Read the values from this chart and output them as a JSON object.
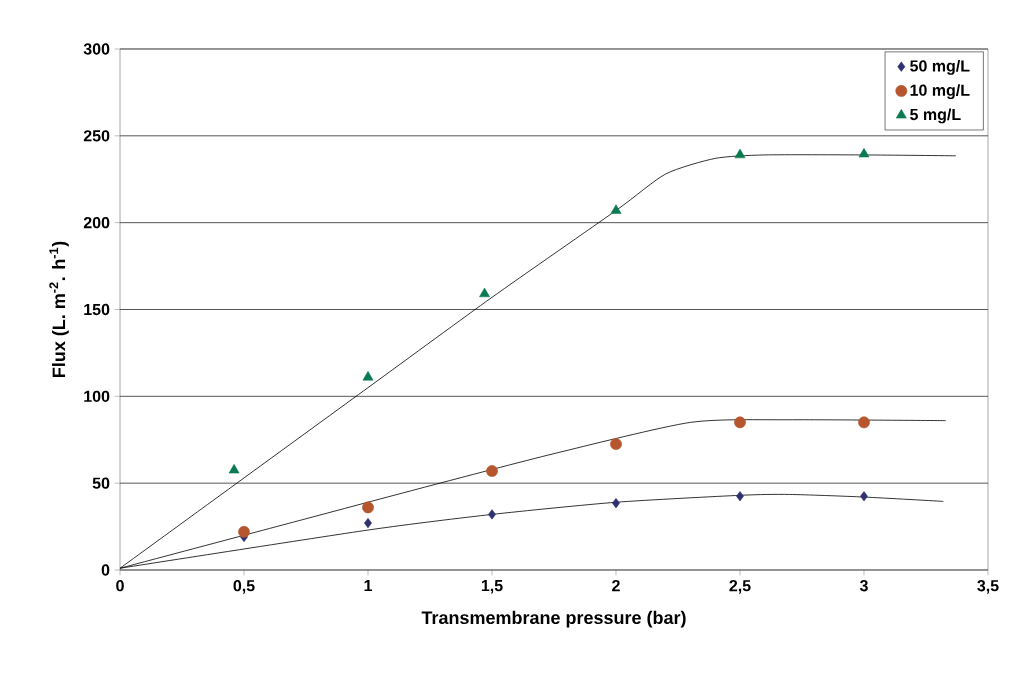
{
  "chart_data": {
    "type": "scatter",
    "xlabel": "Transmembrane pressure (bar)",
    "ylabel": "Flux (L. m$^{-2}$. h$^{-1}$)",
    "xlim": [
      0,
      3.5
    ],
    "ylim": [
      0,
      300
    ],
    "xticks": [
      0,
      {
        "value": 0.5,
        "label": "0,5"
      },
      1,
      {
        "value": 1.5,
        "label": "1,5"
      },
      2,
      {
        "value": 2.5,
        "label": "2,5"
      },
      3,
      {
        "value": 3.5,
        "label": "3,5"
      }
    ],
    "yticks": [
      0,
      50,
      100,
      150,
      200,
      250,
      300
    ],
    "grid": "y",
    "legend": "top right",
    "series": [
      {
        "name": "50 mg/L",
        "color": "#2e3070",
        "marker": "diamond",
        "x": [
          0.5,
          1,
          1.5,
          2,
          2.5,
          3
        ],
        "values": [
          19,
          27,
          32,
          38.5,
          42.5,
          42.5
        ]
      },
      {
        "name": "10 mg/L",
        "color": "#b5562e",
        "marker": "circle",
        "x": [
          0.5,
          1,
          1.5,
          2,
          2.5,
          3
        ],
        "values": [
          22,
          36,
          57,
          72.5,
          85,
          85
        ]
      },
      {
        "name": "5 mg/L",
        "color": "#0a7a50",
        "marker": "triangle",
        "x": [
          0.46,
          1,
          1.47,
          2,
          2.5,
          3
        ],
        "values": [
          57.5,
          111,
          159,
          207,
          239,
          239.5
        ]
      },
      {
        "type": "line",
        "color": "#000000",
        "marker": "none",
        "x": [
          0,
          1,
          1.5,
          2,
          2.5,
          2.7,
          3,
          3.32
        ],
        "values": [
          1,
          23,
          32,
          39,
          43,
          43.5,
          42,
          39.5
        ]
      },
      {
        "type": "line",
        "color": "#000000",
        "marker": "none",
        "x": [
          0,
          0.75,
          1.25,
          1.75,
          2.3,
          2.7,
          3.33
        ],
        "values": [
          1,
          29.5,
          48.5,
          67,
          85,
          86.5,
          86
        ]
      },
      {
        "type": "line",
        "color": "#000000",
        "marker": "none",
        "x": [
          0,
          1,
          1.5,
          2,
          2.2,
          2.4,
          2.6,
          3,
          3.37
        ],
        "values": [
          1,
          105,
          157,
          207,
          228,
          237,
          239,
          239,
          238.5
        ]
      }
    ]
  }
}
